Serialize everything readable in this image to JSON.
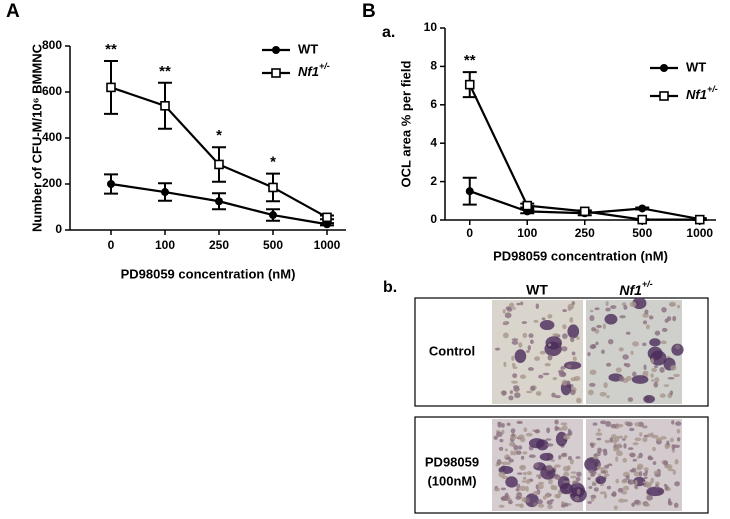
{
  "panel_labels": [
    "A",
    "B"
  ],
  "chart_data": [
    {
      "type": "line",
      "x_label": "PD98059 concentration (nM)",
      "y_label": "Number of CFU-M/10⁶ BMMNC",
      "categories": [
        "0",
        "100",
        "250",
        "500",
        "1000"
      ],
      "series": [
        {
          "name": "WT",
          "color": "#000000",
          "marker": "circle",
          "values": [
            200,
            165,
            125,
            65,
            25
          ],
          "errors": [
            42,
            38,
            35,
            25,
            5
          ]
        },
        {
          "name": "Nf1+/-",
          "color": "#000000",
          "marker": "open-square",
          "values": [
            620,
            540,
            285,
            185,
            55
          ],
          "errors": [
            115,
            100,
            75,
            60,
            8
          ]
        }
      ],
      "significance": [
        "**",
        "**",
        "*",
        "*",
        null
      ],
      "ylim": [
        0,
        800
      ],
      "yticks": [
        0,
        200,
        400,
        600,
        800
      ],
      "grid": false,
      "legend": "upper right"
    },
    {
      "type": "line",
      "label": "a.",
      "x_label": "PD98059 concentration (nM)",
      "y_label": "OCL area % per field",
      "categories": [
        "0",
        "100",
        "250",
        "500",
        "1000"
      ],
      "series": [
        {
          "name": "WT",
          "color": "#000000",
          "marker": "circle",
          "values": [
            1.5,
            0.45,
            0.35,
            0.6,
            0.05
          ],
          "errors": [
            0.7,
            0.1,
            0.1,
            0.05,
            0.05
          ]
        },
        {
          "name": "Nf1+/-",
          "color": "#000000",
          "marker": "open-square",
          "values": [
            7.05,
            0.75,
            0.45,
            0.02,
            0.02
          ],
          "errors": [
            0.65,
            0.1,
            0.05,
            0.02,
            0.02
          ]
        }
      ],
      "significance": [
        "**",
        null,
        null,
        null,
        null
      ],
      "ylim": [
        0,
        10
      ],
      "yticks": [
        0,
        2,
        4,
        6,
        8,
        10
      ],
      "grid": false,
      "legend": "upper right"
    }
  ],
  "panel_b": {
    "label": "b.",
    "columns": [
      "WT",
      "Nf1+/-"
    ],
    "rows": [
      [
        "Control"
      ],
      [
        "PD98059",
        "(100nM)"
      ]
    ]
  }
}
